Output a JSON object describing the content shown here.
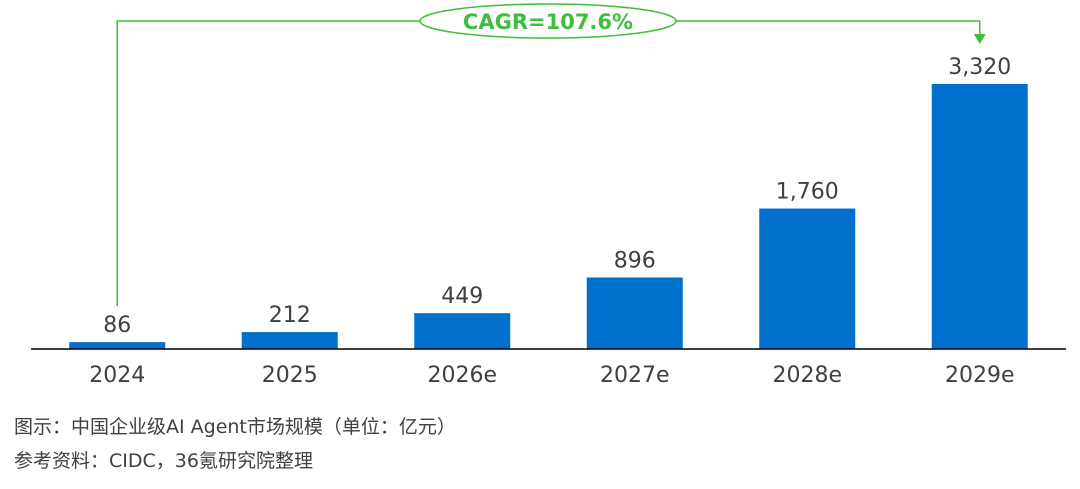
{
  "chart_data": {
    "type": "bar",
    "categories": [
      "2024",
      "2025",
      "2026e",
      "2027e",
      "2028e",
      "2029e"
    ],
    "values": [
      86,
      212,
      449,
      896,
      1760,
      3320
    ],
    "value_labels": [
      "86",
      "212",
      "449",
      "896",
      "1,760",
      "3,320"
    ],
    "ylim": [
      0,
      3320
    ],
    "grid": false,
    "bar_color": "#0070CC",
    "annotation": {
      "text": "CAGR=107.6%",
      "color": "#3DBE3D",
      "from_category": "2024",
      "to_category": "2029e"
    }
  },
  "caption": "图示：中国企业级AI Agent市场规模（单位：亿元）",
  "source": "参考资料：CIDC，36氪研究院整理"
}
